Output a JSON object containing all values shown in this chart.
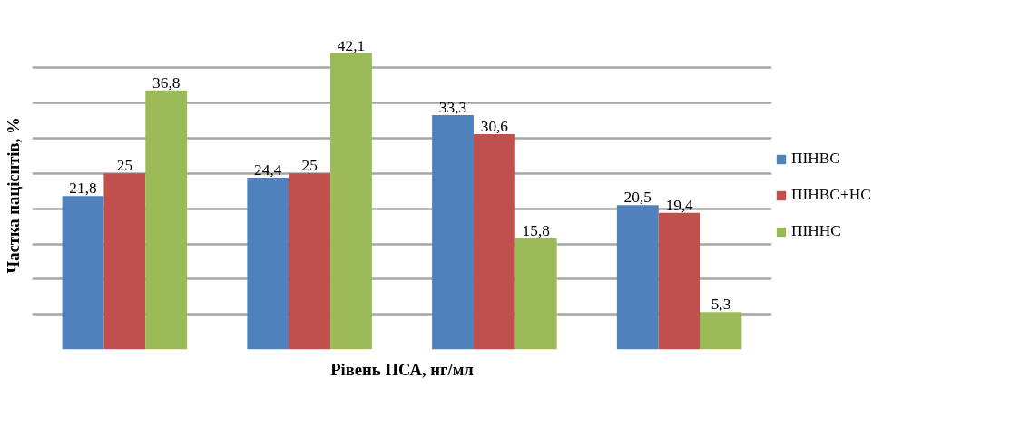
{
  "chart_data": {
    "type": "bar",
    "xlabel": "Рівень ПСА, нг/мл",
    "ylabel": "Частка пацієнтів, %",
    "categories": [
      null,
      null,
      null,
      null
    ],
    "series": [
      {
        "name": "ПІНВС",
        "color": "#4f81bd",
        "values": [
          21.8,
          24.4,
          33.3,
          20.5
        ],
        "value_labels": [
          "21,8",
          "24,4",
          "33,3",
          "20,5"
        ]
      },
      {
        "name": "ПІНВС+НС",
        "color": "#c0504d",
        "values": [
          25,
          25,
          30.6,
          19.4
        ],
        "value_labels": [
          "25",
          "25",
          "30,6",
          "19,4"
        ]
      },
      {
        "name": "ПІННС",
        "color": "#9bbb59",
        "values": [
          36.8,
          42.1,
          15.8,
          5.3
        ],
        "value_labels": [
          "36,8",
          "42,1",
          "15,8",
          "5,3"
        ]
      }
    ],
    "grid": "y",
    "legend": "right",
    "tick_labels": false
  }
}
